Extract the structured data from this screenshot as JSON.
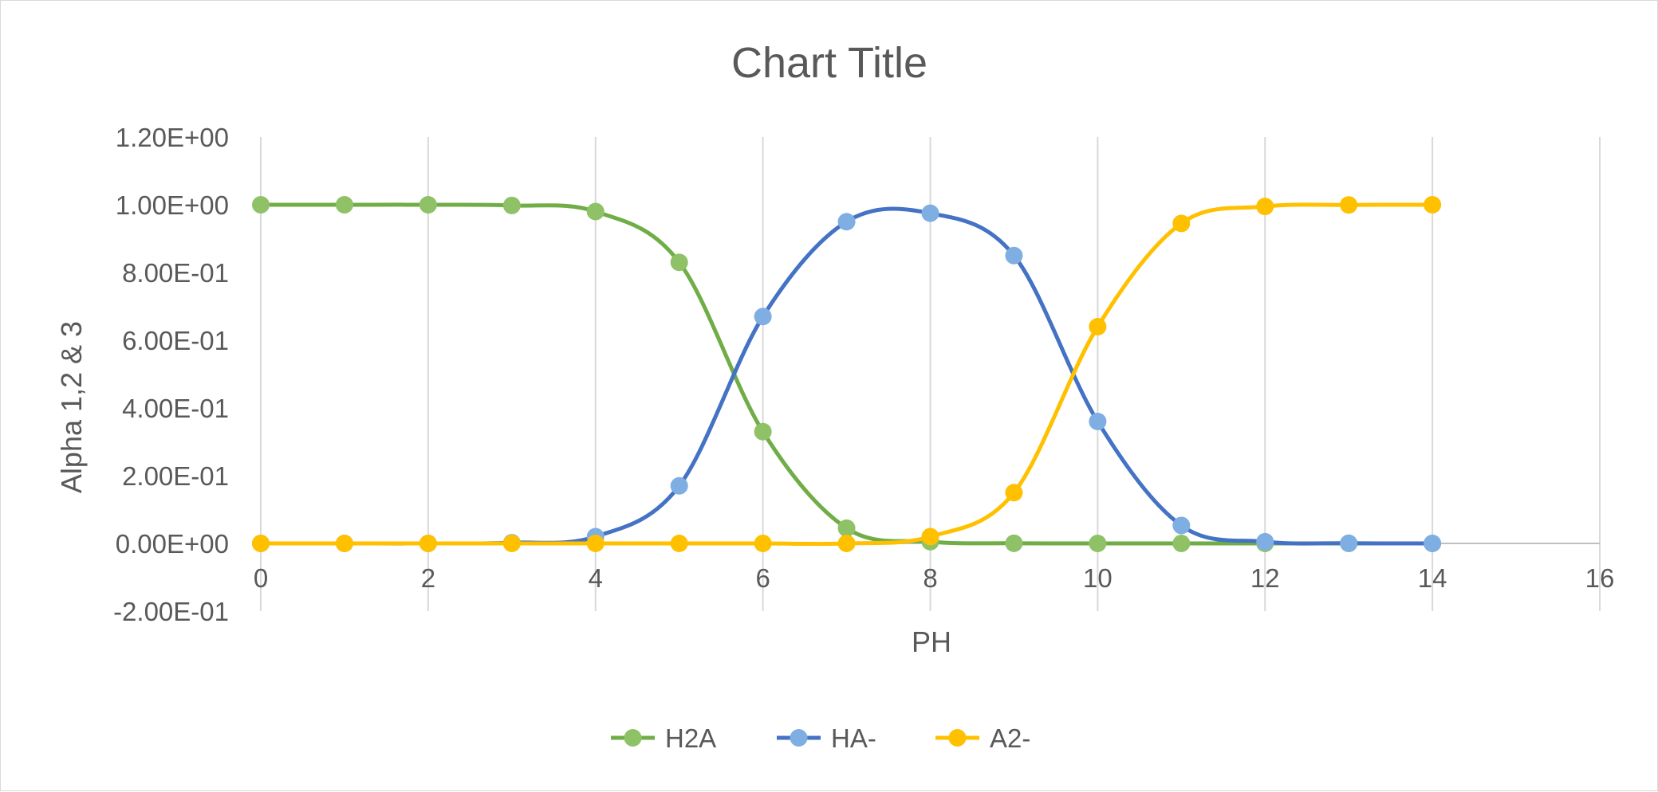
{
  "chart_data": {
    "type": "line",
    "title": "Chart Title",
    "xlabel": "PH",
    "ylabel": "Alpha 1,2 & 3",
    "xlim": [
      0,
      16
    ],
    "ylim": [
      -0.2,
      1.2
    ],
    "x_ticks": [
      "0",
      "2",
      "4",
      "6",
      "8",
      "10",
      "12",
      "14",
      "16"
    ],
    "y_ticks": [
      "-2.00E-01",
      "0.00E+00",
      "2.00E-01",
      "4.00E-01",
      "6.00E-01",
      "8.00E-01",
      "1.00E+00",
      "1.20E+00"
    ],
    "grid": "vertical",
    "smooth": true,
    "markers": true,
    "legend_position": "bottom",
    "x": [
      0,
      1,
      2,
      3,
      4,
      5,
      6,
      7,
      8,
      9,
      10,
      11,
      12,
      13,
      14
    ],
    "series": [
      {
        "name": "H2A",
        "line_color": "#70ad47",
        "marker_color": "#8fc266",
        "values": [
          1.0,
          1.0,
          1.0,
          0.998,
          0.98,
          0.83,
          0.33,
          0.045,
          0.005,
          0.0004,
          0.0,
          0.0,
          0.0,
          0.0,
          0.0
        ]
      },
      {
        "name": "HA-",
        "line_color": "#4472c4",
        "marker_color": "#7faee3",
        "values": [
          0.0,
          0.0,
          0.0,
          0.002,
          0.02,
          0.17,
          0.67,
          0.95,
          0.975,
          0.85,
          0.36,
          0.053,
          0.005,
          0.0005,
          0.0
        ]
      },
      {
        "name": "A2-",
        "line_color": "#ffc000",
        "marker_color": "#ffc000",
        "values": [
          0.0,
          0.0,
          0.0,
          0.0,
          0.0,
          0.0,
          0.0,
          0.0,
          0.02,
          0.15,
          0.64,
          0.945,
          0.995,
          0.9995,
          1.0
        ]
      }
    ]
  }
}
